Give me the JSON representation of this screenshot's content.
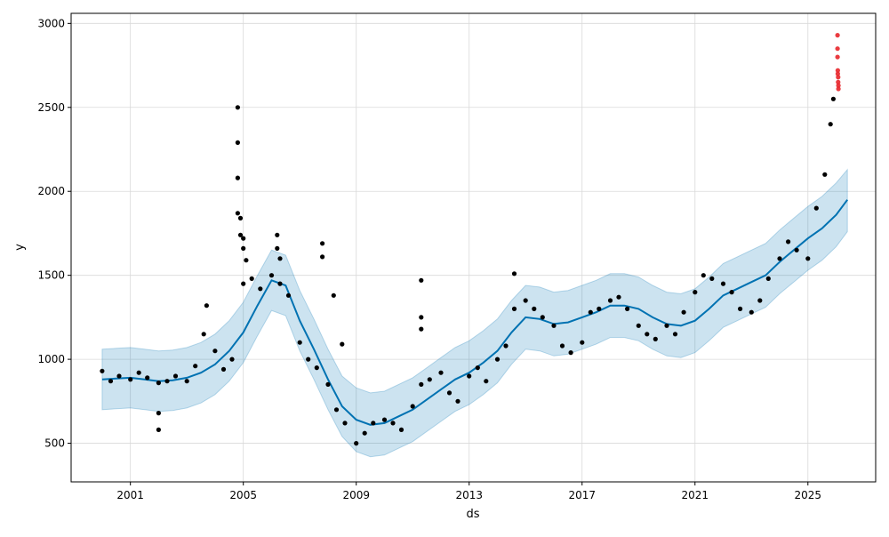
{
  "chart_data": {
    "type": "scatter",
    "title": "",
    "xlabel": "ds",
    "ylabel": "y",
    "xlim": [
      1998.9,
      2027.4
    ],
    "ylim": [
      270,
      3060
    ],
    "x_ticks": [
      {
        "value": 2001,
        "label": "2001"
      },
      {
        "value": 2005,
        "label": "2005"
      },
      {
        "value": 2009,
        "label": "2009"
      },
      {
        "value": 2013,
        "label": "2013"
      },
      {
        "value": 2017,
        "label": "2017"
      },
      {
        "value": 2021,
        "label": "2021"
      },
      {
        "value": 2025,
        "label": "2025"
      }
    ],
    "y_ticks": [
      {
        "value": 500,
        "label": "500"
      },
      {
        "value": 1000,
        "label": "1000"
      },
      {
        "value": 1500,
        "label": "1500"
      },
      {
        "value": 2000,
        "label": "2000"
      },
      {
        "value": 2500,
        "label": "2500"
      },
      {
        "value": 3000,
        "label": "3000"
      }
    ],
    "grid": true,
    "colors": {
      "actual": "#000000",
      "forecast": "#0072B2",
      "interval": "#0072B2",
      "interval_opacity": 0.2,
      "outlier": "#e8262b",
      "grid": "#d9d9d9"
    },
    "series": [
      {
        "role": "yhat",
        "x": [
          2000.0,
          2000.5,
          2001.0,
          2001.5,
          2002.0,
          2002.5,
          2003.0,
          2003.5,
          2004.0,
          2004.5,
          2005.0,
          2005.5,
          2006.0,
          2006.5,
          2007.0,
          2007.5,
          2008.0,
          2008.5,
          2009.0,
          2009.5,
          2010.0,
          2010.5,
          2011.0,
          2011.5,
          2012.0,
          2012.5,
          2013.0,
          2013.5,
          2014.0,
          2014.5,
          2015.0,
          2015.5,
          2016.0,
          2016.5,
          2017.0,
          2017.5,
          2018.0,
          2018.5,
          2019.0,
          2019.5,
          2020.0,
          2020.5,
          2021.0,
          2021.5,
          2022.0,
          2022.5,
          2023.0,
          2023.5,
          2024.0,
          2024.5,
          2025.0,
          2025.5,
          2026.0,
          2026.4
        ],
        "y": [
          880,
          885,
          890,
          880,
          870,
          875,
          890,
          920,
          970,
          1050,
          1160,
          1320,
          1470,
          1440,
          1230,
          1060,
          880,
          720,
          640,
          610,
          620,
          660,
          700,
          760,
          820,
          880,
          920,
          980,
          1050,
          1160,
          1250,
          1240,
          1210,
          1220,
          1250,
          1280,
          1320,
          1320,
          1300,
          1250,
          1210,
          1200,
          1230,
          1300,
          1380,
          1420,
          1460,
          1500,
          1580,
          1650,
          1720,
          1780,
          1860,
          1950
        ]
      },
      {
        "role": "yhat_lower",
        "x": [
          2000.0,
          2000.5,
          2001.0,
          2001.5,
          2002.0,
          2002.5,
          2003.0,
          2003.5,
          2004.0,
          2004.5,
          2005.0,
          2005.5,
          2006.0,
          2006.5,
          2007.0,
          2007.5,
          2008.0,
          2008.5,
          2009.0,
          2009.5,
          2010.0,
          2010.5,
          2011.0,
          2011.5,
          2012.0,
          2012.5,
          2013.0,
          2013.5,
          2014.0,
          2014.5,
          2015.0,
          2015.5,
          2016.0,
          2016.5,
          2017.0,
          2017.5,
          2018.0,
          2018.5,
          2019.0,
          2019.5,
          2020.0,
          2020.5,
          2021.0,
          2021.5,
          2022.0,
          2022.5,
          2023.0,
          2023.5,
          2024.0,
          2024.5,
          2025.0,
          2025.5,
          2026.0,
          2026.4
        ],
        "y": [
          700,
          705,
          710,
          700,
          690,
          695,
          710,
          740,
          790,
          870,
          980,
          1140,
          1290,
          1260,
          1050,
          880,
          700,
          540,
          450,
          420,
          430,
          470,
          510,
          570,
          630,
          690,
          730,
          790,
          860,
          970,
          1060,
          1050,
          1020,
          1030,
          1060,
          1090,
          1130,
          1130,
          1110,
          1060,
          1020,
          1010,
          1040,
          1110,
          1190,
          1230,
          1270,
          1310,
          1390,
          1460,
          1530,
          1590,
          1670,
          1760
        ]
      },
      {
        "role": "yhat_upper",
        "x": [
          2000.0,
          2000.5,
          2001.0,
          2001.5,
          2002.0,
          2002.5,
          2003.0,
          2003.5,
          2004.0,
          2004.5,
          2005.0,
          2005.5,
          2006.0,
          2006.5,
          2007.0,
          2007.5,
          2008.0,
          2008.5,
          2009.0,
          2009.5,
          2010.0,
          2010.5,
          2011.0,
          2011.5,
          2012.0,
          2012.5,
          2013.0,
          2013.5,
          2014.0,
          2014.5,
          2015.0,
          2015.5,
          2016.0,
          2016.5,
          2017.0,
          2017.5,
          2018.0,
          2018.5,
          2019.0,
          2019.5,
          2020.0,
          2020.5,
          2021.0,
          2021.5,
          2022.0,
          2022.5,
          2023.0,
          2023.5,
          2024.0,
          2024.5,
          2025.0,
          2025.5,
          2026.0,
          2026.4
        ],
        "y": [
          1060,
          1065,
          1070,
          1060,
          1050,
          1055,
          1070,
          1100,
          1150,
          1230,
          1340,
          1500,
          1650,
          1620,
          1410,
          1240,
          1060,
          900,
          830,
          800,
          810,
          850,
          890,
          950,
          1010,
          1070,
          1110,
          1170,
          1240,
          1350,
          1440,
          1430,
          1400,
          1410,
          1440,
          1470,
          1510,
          1510,
          1490,
          1440,
          1400,
          1390,
          1420,
          1490,
          1570,
          1610,
          1650,
          1690,
          1770,
          1840,
          1910,
          1970,
          2050,
          2130
        ]
      },
      {
        "role": "actual",
        "x": [
          2000.0,
          2000.3,
          2000.6,
          2001.0,
          2001.3,
          2001.6,
          2002.0,
          2002.3,
          2002.6,
          2003.0,
          2003.3,
          2003.6,
          2004.0,
          2004.3,
          2004.6,
          2005.0,
          2005.3,
          2005.6,
          2006.0,
          2006.3,
          2006.6,
          2007.0,
          2007.3,
          2007.6,
          2008.0,
          2008.3,
          2008.6,
          2009.0,
          2009.3,
          2009.6,
          2010.0,
          2010.3,
          2010.6,
          2011.0,
          2011.3,
          2011.6,
          2012.0,
          2012.3,
          2012.6,
          2013.0,
          2013.3,
          2013.6,
          2014.0,
          2014.3,
          2014.6,
          2015.0,
          2015.3,
          2015.6,
          2016.0,
          2016.3,
          2016.6,
          2017.0,
          2017.3,
          2017.6,
          2018.0,
          2018.3,
          2018.6,
          2019.0,
          2019.3,
          2019.6,
          2020.0,
          2020.3,
          2020.6,
          2021.0,
          2021.3,
          2021.6,
          2022.0,
          2022.3,
          2022.6,
          2023.0,
          2023.3,
          2023.6,
          2024.0,
          2024.3,
          2024.6,
          2025.0,
          2025.3,
          2025.6,
          2025.8,
          2025.9
        ],
        "y": [
          930,
          870,
          900,
          880,
          920,
          890,
          860,
          870,
          900,
          870,
          960,
          1150,
          1050,
          940,
          1000,
          1450,
          1480,
          1420,
          1500,
          1450,
          1380,
          1100,
          1000,
          950,
          850,
          700,
          620,
          500,
          560,
          620,
          640,
          620,
          580,
          720,
          850,
          880,
          920,
          800,
          750,
          900,
          950,
          870,
          1000,
          1080,
          1300,
          1350,
          1300,
          1250,
          1200,
          1080,
          1040,
          1100,
          1280,
          1300,
          1350,
          1370,
          1300,
          1200,
          1150,
          1120,
          1200,
          1150,
          1280,
          1400,
          1500,
          1480,
          1450,
          1400,
          1300,
          1280,
          1350,
          1480,
          1600,
          1700,
          1650,
          1600,
          1900,
          2100,
          2400,
          2550
        ]
      },
      {
        "role": "actual_spikes",
        "x": [
          2002.0,
          2002.0,
          2003.7,
          2004.8,
          2004.8,
          2004.8,
          2004.8,
          2004.9,
          2004.9,
          2005.0,
          2005.0,
          2005.1,
          2006.2,
          2006.2,
          2006.3,
          2007.8,
          2007.8,
          2008.2,
          2008.5,
          2011.3,
          2011.3,
          2011.3,
          2014.6
        ],
        "y": [
          580,
          680,
          1320,
          2500,
          2290,
          2080,
          1870,
          1840,
          1740,
          1720,
          1660,
          1590,
          1740,
          1660,
          1600,
          1690,
          1610,
          1380,
          1090,
          1470,
          1250,
          1180,
          1510
        ]
      },
      {
        "role": "outlier",
        "x": [
          2026.05,
          2026.05,
          2026.05,
          2026.06,
          2026.06,
          2026.07,
          2026.07,
          2026.08,
          2026.08
        ],
        "y": [
          2930,
          2850,
          2800,
          2720,
          2700,
          2680,
          2650,
          2630,
          2610
        ]
      }
    ]
  }
}
